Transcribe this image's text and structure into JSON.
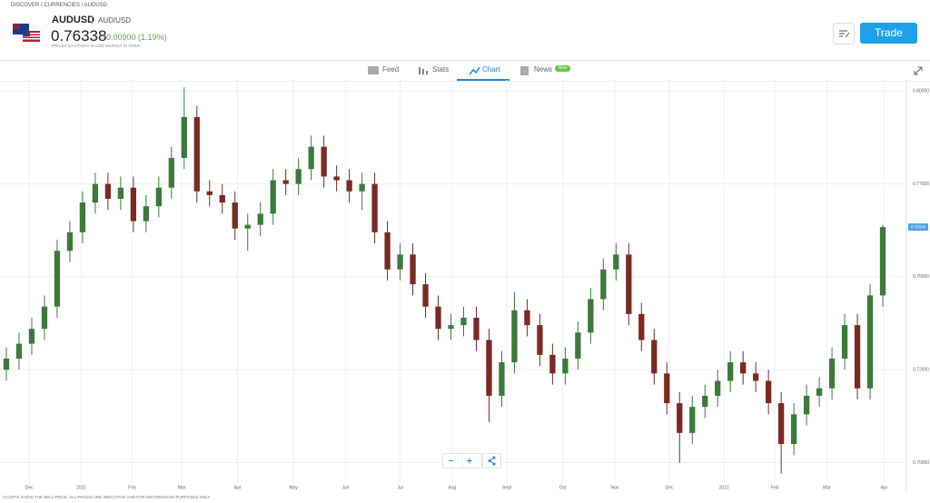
{
  "breadcrumb": "DISCOVER / CURRENCIES / AUDUSD",
  "header": {
    "symbol": "AUDUSD",
    "name": "AUD/USD",
    "price": "0.76338",
    "change": "0.00900 (1.19%)",
    "source": "PRICES BY ETORO IN USD",
    "status": "MARKET IS OPEN"
  },
  "trade_button": "Trade",
  "tabs": [
    "Feed",
    "Stats",
    "Chart",
    "News"
  ],
  "new_badge": "New",
  "footer_note": "CHARTS SHOW THE SELL PRICE. ALL PRICES ARE INDICATIVE AND FOR INFORMATION PURPOSES ONLY",
  "chart_data": {
    "type": "candlestick",
    "x": [
      0,
      1,
      2,
      3,
      4,
      5,
      6,
      7,
      8,
      9,
      10,
      11,
      12,
      13,
      14,
      15,
      16,
      17,
      18,
      19,
      20,
      21,
      22,
      23,
      24,
      25,
      26,
      27,
      28,
      29,
      30,
      31,
      32,
      33,
      34,
      35,
      36,
      37,
      38,
      39,
      40,
      41,
      42,
      43,
      44,
      45,
      46,
      47,
      48,
      49,
      50,
      51,
      52,
      53,
      54,
      55,
      56,
      57,
      58,
      59,
      60,
      61,
      62,
      63,
      64,
      65,
      66,
      67,
      68,
      69
    ],
    "open": [
      0.725,
      0.728,
      0.732,
      0.736,
      0.742,
      0.757,
      0.762,
      0.77,
      0.775,
      0.771,
      0.774,
      0.765,
      0.769,
      0.774,
      0.782,
      0.793,
      0.773,
      0.772,
      0.77,
      0.763,
      0.764,
      0.767,
      0.776,
      0.775,
      0.779,
      0.785,
      0.777,
      0.776,
      0.773,
      0.775,
      0.762,
      0.752,
      0.756,
      0.748,
      0.742,
      0.736,
      0.737,
      0.739,
      0.733,
      0.718,
      0.727,
      0.741,
      0.737,
      0.729,
      0.724,
      0.728,
      0.735,
      0.744,
      0.752,
      0.756,
      0.74,
      0.733,
      0.724,
      0.716,
      0.708,
      0.715,
      0.718,
      0.722,
      0.727,
      0.724,
      0.722,
      0.716,
      0.705,
      0.713,
      0.718,
      0.72,
      0.728,
      0.737,
      0.72,
      0.745
    ],
    "high": [
      0.731,
      0.735,
      0.739,
      0.745,
      0.76,
      0.765,
      0.773,
      0.778,
      0.778,
      0.777,
      0.777,
      0.772,
      0.777,
      0.785,
      0.801,
      0.796,
      0.776,
      0.775,
      0.773,
      0.767,
      0.77,
      0.779,
      0.779,
      0.782,
      0.788,
      0.788,
      0.78,
      0.779,
      0.778,
      0.778,
      0.765,
      0.759,
      0.759,
      0.751,
      0.745,
      0.74,
      0.742,
      0.742,
      0.736,
      0.73,
      0.746,
      0.744,
      0.74,
      0.732,
      0.731,
      0.738,
      0.747,
      0.755,
      0.759,
      0.759,
      0.743,
      0.736,
      0.727,
      0.719,
      0.718,
      0.721,
      0.725,
      0.73,
      0.73,
      0.727,
      0.725,
      0.719,
      0.716,
      0.721,
      0.723,
      0.731,
      0.74,
      0.74,
      0.748,
      0.764
    ],
    "low": [
      0.722,
      0.725,
      0.729,
      0.733,
      0.739,
      0.754,
      0.759,
      0.767,
      0.768,
      0.768,
      0.762,
      0.762,
      0.766,
      0.771,
      0.779,
      0.77,
      0.769,
      0.767,
      0.76,
      0.757,
      0.761,
      0.764,
      0.772,
      0.772,
      0.776,
      0.774,
      0.773,
      0.77,
      0.768,
      0.759,
      0.749,
      0.749,
      0.745,
      0.739,
      0.733,
      0.733,
      0.734,
      0.73,
      0.711,
      0.715,
      0.724,
      0.734,
      0.726,
      0.721,
      0.721,
      0.725,
      0.732,
      0.741,
      0.749,
      0.737,
      0.73,
      0.721,
      0.713,
      0.7,
      0.705,
      0.712,
      0.715,
      0.719,
      0.721,
      0.719,
      0.713,
      0.697,
      0.702,
      0.71,
      0.715,
      0.717,
      0.725,
      0.717,
      0.717,
      0.742
    ],
    "close": [
      0.728,
      0.732,
      0.736,
      0.742,
      0.757,
      0.762,
      0.77,
      0.775,
      0.771,
      0.774,
      0.765,
      0.769,
      0.774,
      0.782,
      0.793,
      0.773,
      0.772,
      0.77,
      0.763,
      0.764,
      0.767,
      0.776,
      0.775,
      0.779,
      0.785,
      0.777,
      0.776,
      0.773,
      0.775,
      0.762,
      0.752,
      0.756,
      0.748,
      0.742,
      0.736,
      0.737,
      0.739,
      0.733,
      0.718,
      0.727,
      0.741,
      0.737,
      0.729,
      0.724,
      0.728,
      0.735,
      0.744,
      0.752,
      0.756,
      0.74,
      0.733,
      0.724,
      0.716,
      0.708,
      0.715,
      0.718,
      0.722,
      0.727,
      0.724,
      0.722,
      0.716,
      0.705,
      0.713,
      0.718,
      0.72,
      0.728,
      0.737,
      0.72,
      0.745,
      0.76338
    ],
    "up_color": "#3c7a3c",
    "down_color": "#7a2a22",
    "xlim": [
      -0.5,
      71
    ],
    "xticks": [
      {
        "value": 1.8,
        "label": "Dec"
      },
      {
        "value": 5.9,
        "label": "2021"
      },
      {
        "value": 9.9,
        "label": "Feb"
      },
      {
        "value": 13.8,
        "label": "Mar"
      },
      {
        "value": 18.2,
        "label": "Apr"
      },
      {
        "value": 22.6,
        "label": "May"
      },
      {
        "value": 26.7,
        "label": "Jun"
      },
      {
        "value": 31.0,
        "label": "Jul"
      },
      {
        "value": 35.1,
        "label": "Aug"
      },
      {
        "value": 39.4,
        "label": "Sept"
      },
      {
        "value": 43.8,
        "label": "Oct"
      },
      {
        "value": 47.9,
        "label": "Nov"
      },
      {
        "value": 52.2,
        "label": "Dec"
      },
      {
        "value": 56.5,
        "label": "2022"
      },
      {
        "value": 60.5,
        "label": "Feb"
      },
      {
        "value": 64.6,
        "label": "Mar"
      },
      {
        "value": 69.1,
        "label": "Apr"
      }
    ],
    "ylim": [
      0.695,
      0.803
    ],
    "yticks": [
      {
        "value": 0.8,
        "label": "0.80000"
      },
      {
        "value": 0.775,
        "label": "0.77500"
      },
      {
        "value": 0.75,
        "label": "0.75000"
      },
      {
        "value": 0.725,
        "label": "0.72500"
      },
      {
        "value": 0.7,
        "label": "0.70000"
      }
    ],
    "grid": true
  }
}
